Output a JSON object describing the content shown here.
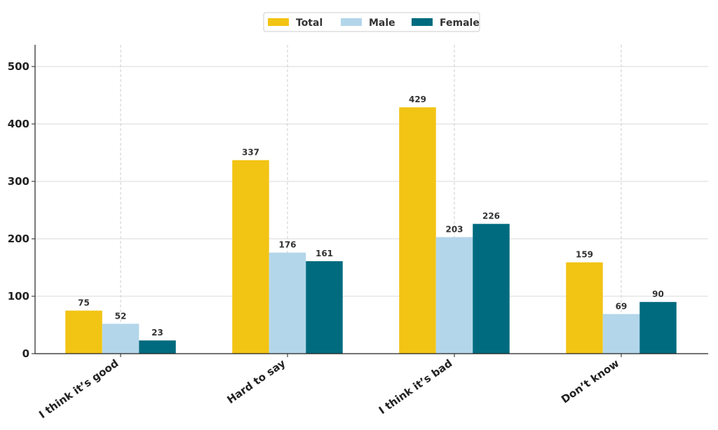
{
  "chart_data": {
    "type": "bar",
    "title": "",
    "xlabel": "",
    "ylabel": "",
    "categories": [
      "I think it’s good",
      "Hard to say",
      "I think it’s bad",
      "Don’t know"
    ],
    "series": [
      {
        "name": "Total",
        "color": "#F2C414",
        "values": [
          75,
          337,
          429,
          159
        ]
      },
      {
        "name": "Male",
        "color": "#B3D6EA",
        "values": [
          52,
          176,
          203,
          69
        ]
      },
      {
        "name": "Female",
        "color": "#006B7F",
        "values": [
          23,
          161,
          226,
          90
        ]
      }
    ],
    "ylim": [
      0,
      500
    ],
    "yticks": [
      0,
      100,
      200,
      300,
      400,
      500
    ],
    "grid": true,
    "legend": "top-center"
  }
}
